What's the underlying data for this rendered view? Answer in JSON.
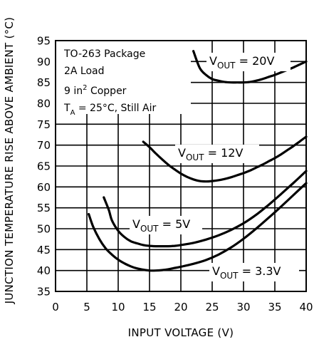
{
  "chart_data": {
    "type": "line",
    "xlabel": "INPUT VOLTAGE (V)",
    "ylabel": "JUNCTION TEMPERATURE RISE ABOVE AMBIENT (°C)",
    "xlim": [
      0,
      40
    ],
    "ylim": [
      35,
      95
    ],
    "x_ticks": [
      "0",
      "5",
      "10",
      "15",
      "20",
      "25",
      "30",
      "35",
      "40"
    ],
    "y_ticks": [
      "35",
      "40",
      "45",
      "50",
      "55",
      "60",
      "65",
      "70",
      "75",
      "80",
      "85",
      "90",
      "95"
    ],
    "grid": true,
    "annotations": [
      {
        "prefix": "TO-263 Package",
        "sup": "",
        "suffix": ""
      },
      {
        "prefix": "2A Load",
        "sup": "",
        "suffix": ""
      },
      {
        "prefix": "9 in",
        "sup": "2",
        "suffix": " Copper"
      },
      {
        "prefix": "T",
        "sub": "A",
        "suffix": " = 25°C, Still Air"
      }
    ],
    "series": [
      {
        "name": "VOUT = 20V",
        "label": {
          "main": "V",
          "sub": "OUT",
          "rest": " = 20V"
        },
        "x": [
          22,
          23,
          24,
          25,
          26,
          27,
          28,
          29,
          30,
          31,
          32,
          33,
          34,
          35,
          36,
          37,
          38,
          39,
          40
        ],
        "y": [
          92.5,
          88.5,
          86.8,
          85.8,
          85.4,
          85.1,
          85.0,
          85.0,
          85.0,
          85.1,
          85.4,
          85.8,
          86.3,
          86.8,
          87.4,
          88.0,
          88.6,
          89.3,
          90.0
        ]
      },
      {
        "name": "VOUT = 12V",
        "label": {
          "main": "V",
          "sub": "OUT",
          "rest": " = 12V"
        },
        "x": [
          14,
          15,
          16,
          17,
          18,
          19,
          20,
          21,
          22,
          23,
          24,
          25,
          26,
          27,
          28,
          29,
          30,
          31,
          32,
          33,
          34,
          35,
          36,
          37,
          38,
          39,
          40
        ],
        "y": [
          70.8,
          69.5,
          68.0,
          66.6,
          65.3,
          64.2,
          63.2,
          62.4,
          61.8,
          61.4,
          61.3,
          61.4,
          61.6,
          61.9,
          62.3,
          62.8,
          63.3,
          63.9,
          64.6,
          65.3,
          66.1,
          66.9,
          67.8,
          68.8,
          69.8,
          70.9,
          72.0
        ]
      },
      {
        "name": "VOUT = 5V",
        "label": {
          "main": "V",
          "sub": "OUT",
          "rest": " = 5V"
        },
        "x": [
          7.7,
          8.5,
          9,
          10,
          11,
          12,
          13,
          14,
          15,
          16,
          17,
          18,
          19,
          20,
          22,
          24,
          26,
          28,
          30,
          32,
          34,
          36,
          38,
          40
        ],
        "y": [
          57.5,
          54.5,
          52.0,
          49.5,
          48.0,
          47.0,
          46.5,
          46.1,
          45.9,
          45.8,
          45.8,
          45.8,
          45.9,
          46.1,
          46.6,
          47.4,
          48.4,
          49.7,
          51.3,
          53.3,
          55.7,
          58.3,
          61.0,
          63.8
        ]
      },
      {
        "name": "VOUT = 3.3V",
        "label": {
          "main": "V",
          "sub": "OUT",
          "rest": " = 3.3V"
        },
        "x": [
          5.3,
          6,
          7,
          8,
          9,
          10,
          11,
          12,
          13,
          14,
          15,
          16,
          17,
          18,
          19,
          20,
          22,
          24,
          26,
          28,
          30,
          32,
          34,
          36,
          38,
          40
        ],
        "y": [
          53.5,
          50.5,
          47.5,
          45.3,
          43.8,
          42.6,
          41.7,
          41.0,
          40.5,
          40.2,
          40.0,
          40.0,
          40.1,
          40.3,
          40.6,
          40.9,
          41.6,
          42.5,
          43.8,
          45.5,
          47.6,
          50.0,
          52.6,
          55.3,
          58.1,
          60.9
        ]
      }
    ]
  }
}
